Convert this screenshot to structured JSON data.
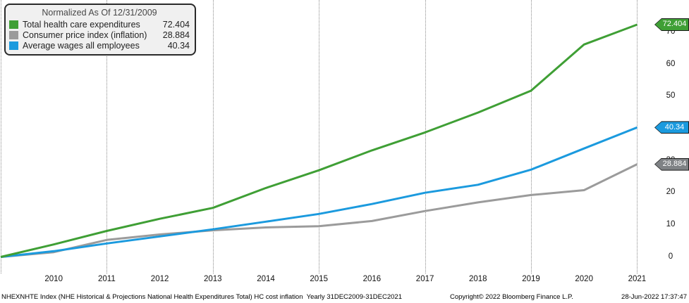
{
  "chart_data": {
    "type": "line",
    "title": "Normalized As Of 12/31/2009",
    "x": [
      2009,
      2010,
      2011,
      2012,
      2013,
      2014,
      2015,
      2016,
      2017,
      2018,
      2019,
      2020,
      2021
    ],
    "x_tick_labels": [
      "2010",
      "2011",
      "2012",
      "2013",
      "2014",
      "2015",
      "2016",
      "2017",
      "2018",
      "2019",
      "2020",
      "2021"
    ],
    "gridline_years": [
      2009,
      2011,
      2013,
      2015,
      2017,
      2019,
      2021
    ],
    "y_ticks": [
      70,
      60,
      50,
      30,
      20,
      10,
      0
    ],
    "ylim": [
      0,
      75
    ],
    "grid": "vertical-dotted",
    "legend_position": "top-left",
    "series": [
      {
        "name": "Total health care expenditures",
        "color": "#3f9f35",
        "tag_color": "#3f9f35",
        "last_value_label": "72.404",
        "values": [
          0,
          3.9,
          8.1,
          11.9,
          15.3,
          21.5,
          27.0,
          33.2,
          38.8,
          45.0,
          51.8,
          66.2,
          72.404
        ]
      },
      {
        "name": "Consumer price index (inflation)",
        "color": "#9b9b9b",
        "tag_color": "#7f8285",
        "last_value_label": "28.884",
        "values": [
          0,
          1.5,
          5.3,
          7.0,
          8.3,
          9.2,
          9.6,
          11.2,
          14.3,
          17.0,
          19.3,
          20.8,
          28.884
        ]
      },
      {
        "name": "Average wages all employees",
        "color": "#1b9ade",
        "tag_color": "#1b9ade",
        "last_value_label": "40.34",
        "values": [
          0,
          1.8,
          4.2,
          6.4,
          8.6,
          11.0,
          13.4,
          16.5,
          20.0,
          22.5,
          27.2,
          33.8,
          40.34
        ]
      }
    ]
  },
  "footer": {
    "description": "NHEXNHTE Index (NHE Historical & Projections National Health Expenditures Total) HC cost inflation  Yearly 31DEC2009-31DEC2021",
    "copyright": "Copyright© 2022 Bloomberg Finance L.P.",
    "datetime": "28-Jun-2022 17:37:47"
  },
  "colors": {
    "background": "#ffffff",
    "grid": "#8b8b8b",
    "axis_text": "#111111",
    "legend_background": "#f0f0f0",
    "legend_border": "#2a2a2a",
    "tag_text": "#ffffff"
  }
}
